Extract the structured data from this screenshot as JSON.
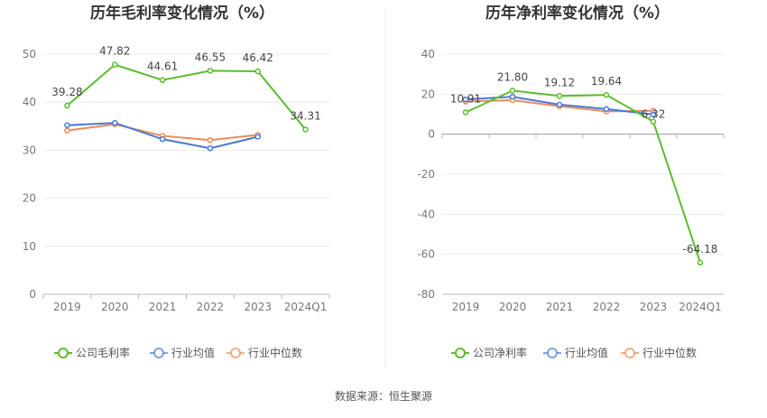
{
  "chart_data": [
    {
      "type": "line",
      "title": "历年毛利率变化情况（%）",
      "categories": [
        "2019",
        "2020",
        "2021",
        "2022",
        "2023",
        "2024Q1"
      ],
      "ylim": [
        0,
        50
      ],
      "yticks": [
        0,
        10,
        20,
        30,
        40,
        50
      ],
      "grid": true,
      "legend_position": "bottom",
      "series": [
        {
          "name": "公司毛利率",
          "color": "#5bbd2b",
          "values": [
            39.28,
            47.82,
            44.61,
            46.55,
            46.42,
            34.31
          ],
          "labels": [
            "39.28",
            "47.82",
            "44.61",
            "46.55",
            "46.42",
            "34.31"
          ]
        },
        {
          "name": "行业均值",
          "color": "#4a79d6",
          "values": [
            35.2,
            35.7,
            32.3,
            30.4,
            32.8,
            null
          ]
        },
        {
          "name": "行业中位数",
          "color": "#ec8a5b",
          "values": [
            34.1,
            35.4,
            33.0,
            32.1,
            33.2,
            null
          ]
        }
      ]
    },
    {
      "type": "line",
      "title": "历年净利率变化情况（%）",
      "categories": [
        "2019",
        "2020",
        "2021",
        "2022",
        "2023",
        "2024Q1"
      ],
      "ylim": [
        -80,
        40
      ],
      "yticks": [
        -80,
        -60,
        -40,
        -20,
        0,
        20,
        40
      ],
      "grid": true,
      "legend_position": "bottom",
      "series": [
        {
          "name": "公司净利率",
          "color": "#5bbd2b",
          "values": [
            10.91,
            21.8,
            19.12,
            19.64,
            6.32,
            -64.18
          ],
          "labels": [
            "10.91",
            "21.80",
            "19.12",
            "19.64",
            "6.32",
            "-64.18"
          ]
        },
        {
          "name": "行业均值",
          "color": "#4a79d6",
          "values": [
            17.4,
            18.7,
            14.8,
            12.6,
            9.9,
            null
          ]
        },
        {
          "name": "行业中位数",
          "color": "#ec8a5b",
          "values": [
            16.3,
            17.0,
            14.0,
            11.4,
            11.7,
            null
          ]
        }
      ]
    }
  ],
  "source": "数据来源：恒生聚源"
}
